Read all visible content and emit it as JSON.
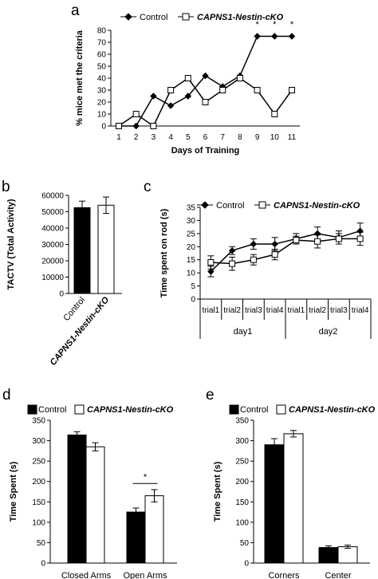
{
  "colors": {
    "control": "#000000",
    "ko": "#ffffff",
    "stroke": "#000000"
  },
  "chart_data": [
    {
      "panel": "a",
      "type": "line",
      "legend": [
        "Control",
        "CAPNS1-Nestin-cKO"
      ],
      "xlabel": "Days of Training",
      "ylabel": "% mice met the criteria",
      "x": [
        1,
        2,
        3,
        4,
        5,
        6,
        7,
        8,
        9,
        10,
        11
      ],
      "ylim": [
        0,
        80
      ],
      "yticks": [
        0,
        10,
        20,
        30,
        40,
        50,
        60,
        70,
        80
      ],
      "series": [
        {
          "name": "Control",
          "marker": "diamond-filled",
          "values": [
            0,
            0,
            25,
            17,
            25,
            42,
            33,
            42,
            75,
            75,
            75
          ]
        },
        {
          "name": "CAPNS1-Nestin-cKO",
          "marker": "square-open",
          "values": [
            0,
            10,
            0,
            30,
            40,
            20,
            30,
            40,
            30,
            10,
            30
          ]
        }
      ],
      "annotations": [
        {
          "x": 9,
          "text": "*"
        },
        {
          "x": 10,
          "text": "*"
        },
        {
          "x": 11,
          "text": "*"
        }
      ]
    },
    {
      "panel": "b",
      "type": "bar",
      "categories": [
        "Control",
        "CAPNS1-Nestin-cKO"
      ],
      "values": [
        52500,
        54000
      ],
      "errors": [
        4000,
        5000
      ],
      "ylabel": "TACTV (Total Activity)",
      "ylim": [
        0,
        60000
      ],
      "yticks": [
        0,
        10000,
        20000,
        30000,
        40000,
        50000,
        60000
      ]
    },
    {
      "panel": "c",
      "type": "line",
      "legend": [
        "Control",
        "CAPNS1-Nestin-cKO"
      ],
      "ylabel": "Time spent on rod (s)",
      "categories": [
        "trial1",
        "trial2",
        "trial3",
        "trial4",
        "trial1",
        "trial2",
        "trial3",
        "trial4"
      ],
      "groups": [
        "day1",
        "day2"
      ],
      "ylim": [
        0,
        35
      ],
      "yticks": [
        0,
        5,
        10,
        15,
        20,
        25,
        30,
        35
      ],
      "series": [
        {
          "name": "Control",
          "marker": "diamond-filled",
          "values": [
            10.5,
            18.5,
            21,
            21,
            23,
            25,
            23.5,
            26
          ],
          "errors": [
            2,
            1.5,
            2,
            2.5,
            2,
            2.5,
            2.5,
            3
          ]
        },
        {
          "name": "CAPNS1-Nestin-cKO",
          "marker": "square-open",
          "values": [
            14,
            13.5,
            15,
            17,
            22.5,
            22,
            23,
            23
          ],
          "errors": [
            2.5,
            2.5,
            2,
            2,
            1.5,
            2.5,
            2,
            2.5
          ]
        }
      ]
    },
    {
      "panel": "d",
      "type": "bar",
      "legend": [
        "Control",
        "CAPNS1-Nestin-cKO"
      ],
      "categories": [
        "Closed Arms",
        "Open Arms"
      ],
      "ylabel": "Time Spent (s)",
      "ylim": [
        0,
        350
      ],
      "yticks": [
        0,
        50,
        100,
        150,
        200,
        250,
        300,
        350
      ],
      "series": [
        {
          "name": "Control",
          "values": [
            314,
            125
          ],
          "errors": [
            8,
            10
          ]
        },
        {
          "name": "CAPNS1-Nestin-cKO",
          "values": [
            285,
            165
          ],
          "errors": [
            10,
            15
          ]
        }
      ],
      "annotations": [
        {
          "category": "Open Arms",
          "text": "*"
        }
      ]
    },
    {
      "panel": "e",
      "type": "bar",
      "legend": [
        "Control",
        "CAPNS1-Nestin-cKO"
      ],
      "categories": [
        "Corners",
        "Center"
      ],
      "ylabel": "Time Spent (s)",
      "ylim": [
        0,
        350
      ],
      "yticks": [
        0,
        50,
        100,
        150,
        200,
        250,
        300,
        350
      ],
      "series": [
        {
          "name": "Control",
          "values": [
            290,
            38
          ],
          "errors": [
            15,
            4
          ]
        },
        {
          "name": "CAPNS1-Nestin-cKO",
          "values": [
            317,
            40
          ],
          "errors": [
            8,
            4
          ]
        }
      ]
    }
  ]
}
